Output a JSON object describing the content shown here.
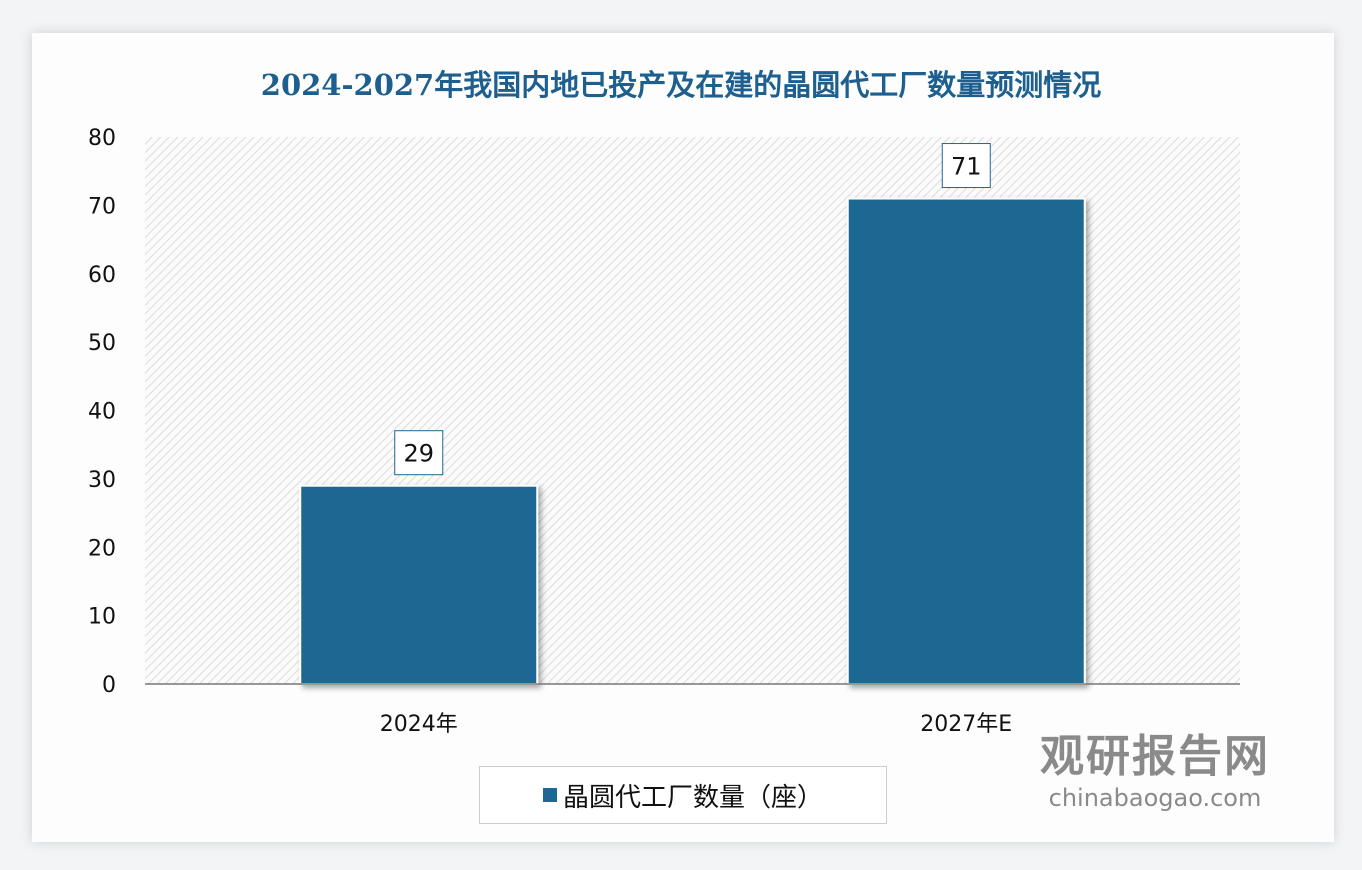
{
  "chart_data": {
    "type": "bar",
    "title": "2024-2027年我国内地已投产及在建的晶圆代工厂数量预测情况",
    "categories": [
      "2024年",
      "2027年E"
    ],
    "series": [
      {
        "name": "晶圆代工厂数量（座）",
        "values": [
          29,
          71
        ]
      }
    ],
    "ylim": [
      0,
      80
    ],
    "yticks": [
      0,
      10,
      20,
      30,
      40,
      50,
      60,
      70,
      80
    ],
    "grid": false,
    "legend": "bottom",
    "color": "#1a6893"
  },
  "watermark": {
    "brand": "观研报告网",
    "site": "chinabaogao.com"
  }
}
